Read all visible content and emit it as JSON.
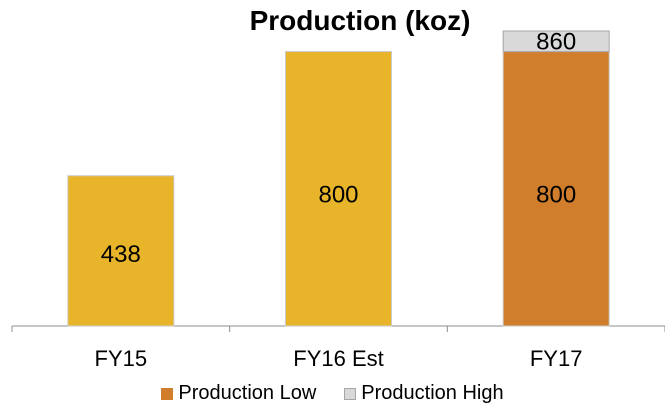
{
  "chart_data": {
    "type": "bar",
    "title": "Production (koz)",
    "categories": [
      "FY15",
      "FY16 Est",
      "FY17"
    ],
    "bars": [
      {
        "category": "FY15",
        "value": 438,
        "label": "438",
        "color": "#E8B52A"
      },
      {
        "category": "FY16 Est",
        "value": 800,
        "label": "800",
        "color": "#E8B52A"
      },
      {
        "category": "FY17",
        "value": 800,
        "label": "800",
        "color": "#D07E2C"
      },
      {
        "category": "FY17",
        "base": 800,
        "value": 860,
        "label": "860",
        "color": "#D9D9D9"
      }
    ],
    "legend": [
      {
        "name": "Production Low",
        "color": "#D07E2C"
      },
      {
        "name": "Production High",
        "color": "#D9D9D9"
      }
    ],
    "ylim": [
      0,
      860
    ],
    "grid": false,
    "legend_position": "bottom"
  }
}
